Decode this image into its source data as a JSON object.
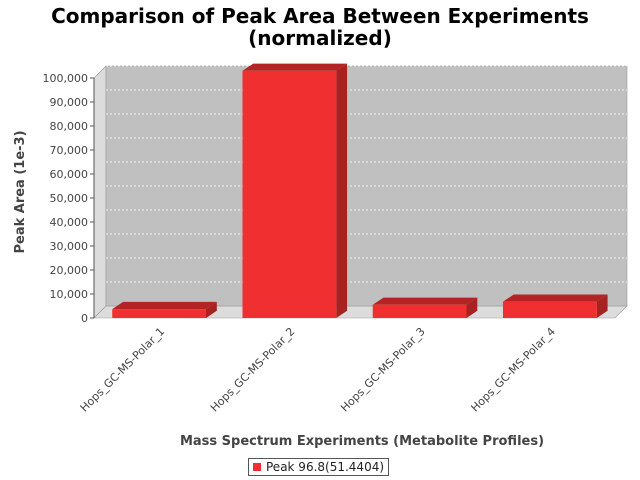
{
  "chart_data": {
    "type": "bar",
    "title": "Comparison of Peak Area Between Experiments",
    "subtitle": "(normalized)",
    "xlabel": "Mass Spectrum Experiments (Metabolite Profiles)",
    "ylabel": "Peak Area (1e-3)",
    "categories": [
      "Hops_GC-MS-Polar_1",
      "Hops_GC-MS-Polar_2",
      "Hops_GC-MS-Polar_3",
      "Hops_GC-MS-Polar_4"
    ],
    "series": [
      {
        "name": "Peak 96.8(51.4404)",
        "values": [
          3700,
          103000,
          5500,
          6800
        ],
        "color": "#f03030"
      }
    ],
    "ylim": [
      0,
      105000
    ],
    "yticks": [
      0,
      10000,
      20000,
      30000,
      40000,
      50000,
      60000,
      70000,
      80000,
      90000,
      100000
    ],
    "ytick_labels": [
      "0",
      "10,000",
      "20,000",
      "30,000",
      "40,000",
      "50,000",
      "60,000",
      "70,000",
      "80,000",
      "90,000",
      "100,000"
    ],
    "grid": true,
    "legend_position": "bottom",
    "plot_background": "#c0c0c0"
  }
}
